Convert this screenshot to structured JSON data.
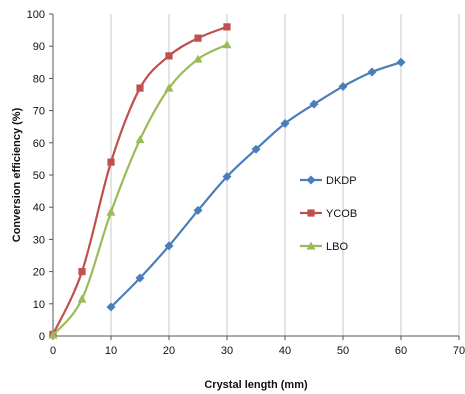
{
  "chart_data": {
    "type": "line",
    "xlabel": "Crystal length (mm)",
    "ylabel": "Conversion efficiency (%)",
    "xlim": [
      0,
      70
    ],
    "ylim": [
      0,
      100
    ],
    "x_ticks": [
      "0",
      "10",
      "20",
      "30",
      "40",
      "50",
      "60",
      "70"
    ],
    "y_ticks": [
      "0",
      "10",
      "20",
      "30",
      "40",
      "50",
      "60",
      "70",
      "80",
      "90",
      "100"
    ],
    "grid": "vertical",
    "legend_position": "right-middle",
    "series": [
      {
        "name": "DKDP",
        "color": "#4a7ebb",
        "marker": "diamond",
        "x": [
          10,
          15,
          20,
          25,
          30,
          35,
          40,
          45,
          50,
          55,
          60
        ],
        "y": [
          9,
          18,
          28,
          39,
          49.5,
          58,
          66,
          72,
          77.5,
          82,
          85
        ]
      },
      {
        "name": "YCOB",
        "color": "#c0504d",
        "marker": "square",
        "x": [
          0,
          5,
          10,
          15,
          20,
          25,
          30
        ],
        "y": [
          0.5,
          20,
          54,
          77,
          87,
          92.5,
          96
        ]
      },
      {
        "name": "LBO",
        "color": "#9bbb59",
        "marker": "triangle",
        "x": [
          0,
          5,
          10,
          15,
          20,
          25,
          30
        ],
        "y": [
          0.3,
          11.5,
          38.5,
          61,
          77,
          86,
          90.5
        ]
      }
    ]
  }
}
